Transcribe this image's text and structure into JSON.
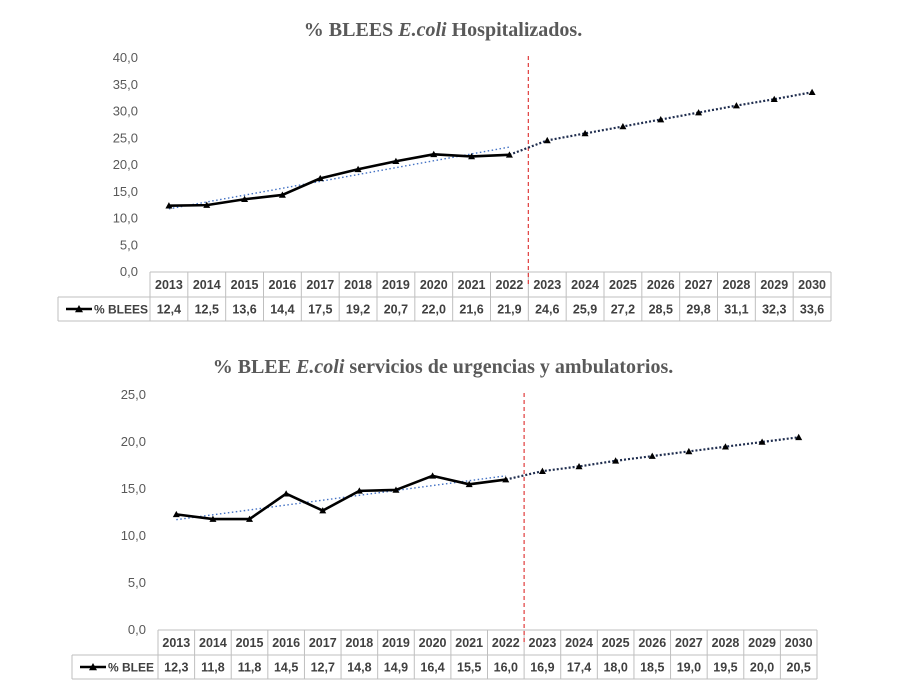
{
  "chart_data": [
    {
      "type": "line",
      "title_parts": [
        "% BLEES ",
        "E.coli",
        " Hospitalizados."
      ],
      "categories": [
        "2013",
        "2014",
        "2015",
        "2016",
        "2017",
        "2018",
        "2019",
        "2020",
        "2021",
        "2022",
        "2023",
        "2024",
        "2025",
        "2026",
        "2027",
        "2028",
        "2029",
        "2030"
      ],
      "series": [
        {
          "name": "% BLEES",
          "values": [
            12.4,
            12.5,
            13.6,
            14.4,
            17.5,
            19.2,
            20.7,
            22.0,
            21.6,
            21.9,
            24.6,
            25.9,
            27.2,
            28.5,
            29.8,
            31.1,
            32.3,
            33.6
          ],
          "labels": [
            "12,4",
            "12,5",
            "13,6",
            "14,4",
            "17,5",
            "19,2",
            "20,7",
            "22,0",
            "21,6",
            "21,9",
            "24,6",
            "25,9",
            "27,2",
            "28,5",
            "29,8",
            "31,1",
            "32,3",
            "33,6"
          ]
        }
      ],
      "observed_until": "2022",
      "forecast_from": "2022",
      "divider_at": "2022",
      "trendline": "linear, dotted, observed years",
      "ylim": [
        0,
        40
      ],
      "yticks": [
        "0,0",
        "5,0",
        "10,0",
        "15,0",
        "20,0",
        "25,0",
        "30,0",
        "35,0",
        "40,0"
      ],
      "data_table": true,
      "colors": {
        "series": "#000000",
        "forecast": "#1f2d4e",
        "trend": "#4472c4",
        "divider": "#e03c3c",
        "grid": "#bfbfbf"
      }
    },
    {
      "type": "line",
      "title_parts": [
        "% BLEE ",
        "E.coli",
        " servicios de urgencias y ambulatorios."
      ],
      "categories": [
        "2013",
        "2014",
        "2015",
        "2016",
        "2017",
        "2018",
        "2019",
        "2020",
        "2021",
        "2022",
        "2023",
        "2024",
        "2025",
        "2026",
        "2027",
        "2028",
        "2029",
        "2030"
      ],
      "series": [
        {
          "name": "% BLEE",
          "values": [
            12.3,
            11.8,
            11.8,
            14.5,
            12.7,
            14.8,
            14.9,
            16.4,
            15.5,
            16.0,
            16.9,
            17.4,
            18.0,
            18.5,
            19.0,
            19.5,
            20.0,
            20.5
          ],
          "labels": [
            "12,3",
            "11,8",
            "11,8",
            "14,5",
            "12,7",
            "14,8",
            "14,9",
            "16,4",
            "15,5",
            "16,0",
            "16,9",
            "17,4",
            "18,0",
            "18,5",
            "19,0",
            "19,5",
            "20,0",
            "20,5"
          ]
        }
      ],
      "observed_until": "2022",
      "forecast_from": "2022",
      "divider_at": "2022",
      "trendline": "linear, dotted, observed years",
      "ylim": [
        0,
        25
      ],
      "yticks": [
        "0,0",
        "5,0",
        "10,0",
        "15,0",
        "20,0",
        "25,0"
      ],
      "data_table": true,
      "colors": {
        "series": "#000000",
        "forecast": "#1f2d4e",
        "trend": "#4472c4",
        "divider": "#e03c3c",
        "grid": "#bfbfbf"
      }
    }
  ]
}
